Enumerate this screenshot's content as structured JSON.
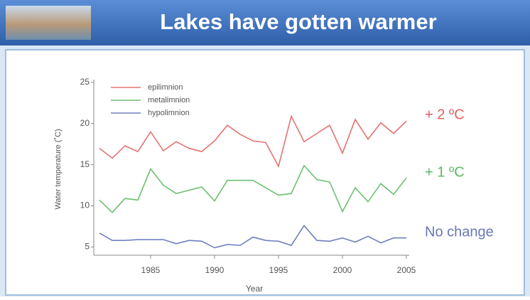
{
  "chart_data": {
    "type": "line",
    "title": "Lakes have gotten warmer",
    "x_label": "Year",
    "y_label": "Water temperature (˚C)",
    "x": [
      1981,
      1982,
      1983,
      1984,
      1985,
      1986,
      1987,
      1988,
      1989,
      1990,
      1991,
      1992,
      1993,
      1994,
      1995,
      1996,
      1997,
      1998,
      1999,
      2000,
      2001,
      2002,
      2003,
      2004,
      2005
    ],
    "series": [
      {
        "name": "epilimnion",
        "color": "#e57373",
        "values": [
          17.0,
          15.8,
          17.3,
          16.6,
          19.0,
          16.7,
          17.8,
          17.0,
          16.6,
          17.9,
          19.8,
          18.7,
          17.9,
          17.7,
          14.8,
          20.9,
          17.8,
          18.8,
          19.8,
          16.4,
          20.5,
          18.1,
          20.1,
          18.8,
          20.3
        ]
      },
      {
        "name": "metalimnion",
        "color": "#6cc070",
        "values": [
          10.7,
          9.2,
          10.9,
          10.7,
          14.5,
          12.5,
          11.5,
          11.9,
          12.3,
          10.6,
          13.1,
          13.1,
          13.1,
          12.2,
          11.3,
          11.5,
          14.9,
          13.2,
          12.9,
          9.3,
          12.2,
          10.5,
          12.7,
          11.4,
          13.4
        ]
      },
      {
        "name": "hypolimnion",
        "color": "#7080c0",
        "values": [
          6.7,
          5.8,
          5.8,
          5.9,
          5.9,
          5.9,
          5.4,
          5.8,
          5.7,
          4.9,
          5.3,
          5.2,
          6.2,
          5.8,
          5.7,
          5.2,
          7.6,
          5.8,
          5.7,
          6.1,
          5.6,
          6.3,
          5.5,
          6.1,
          6.1
        ]
      }
    ],
    "annotations": [
      {
        "text": "+ 2 ºC",
        "color": "#e0605f"
      },
      {
        "text": "+ 1 ºC",
        "color": "#5cb860"
      },
      {
        "text": "No change",
        "color": "#6878b8"
      }
    ],
    "xlim": [
      1981,
      2005
    ],
    "xticks": [
      1985,
      1990,
      1995,
      2000,
      2005
    ],
    "ylim": [
      4,
      25
    ],
    "yticks": [
      5,
      10,
      15,
      20,
      25
    ],
    "grid": false,
    "legend": "top-left"
  }
}
